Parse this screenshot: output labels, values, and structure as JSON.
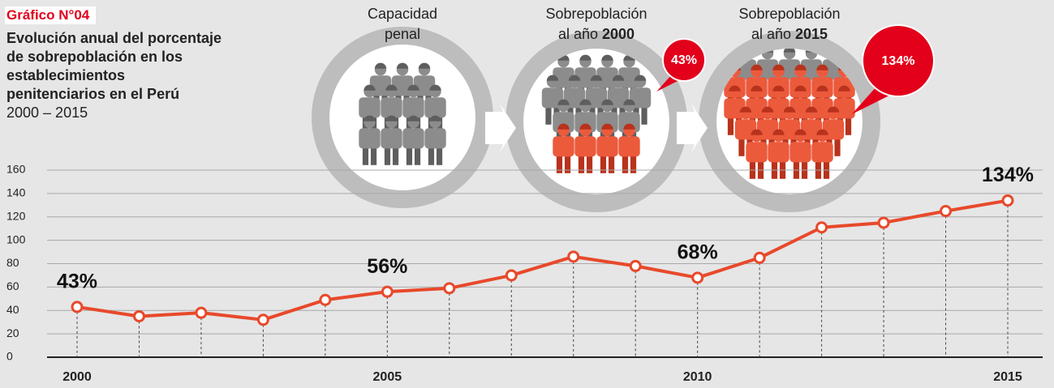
{
  "chart_data": {
    "type": "line",
    "figure_label": "Gráfico N°04",
    "title": [
      "Evolución anual del porcentaje",
      "de sobrepoblación en los",
      "establecimientos",
      "penitenciarios en el Perú"
    ],
    "subtitle": "2000 – 2015",
    "x": [
      2000,
      2001,
      2002,
      2003,
      2004,
      2005,
      2006,
      2007,
      2008,
      2009,
      2010,
      2011,
      2012,
      2013,
      2014,
      2015
    ],
    "values": [
      43,
      35,
      38,
      32,
      49,
      56,
      59,
      70,
      86,
      78,
      68,
      85,
      111,
      115,
      125,
      134
    ],
    "value_labels": [
      "43%",
      null,
      null,
      null,
      null,
      "56%",
      null,
      null,
      null,
      null,
      "68%",
      null,
      null,
      null,
      null,
      "134%"
    ],
    "color": "#e8492b",
    "xlim": [
      2000,
      2015
    ],
    "xticks": [
      2000,
      2005,
      2010,
      2015
    ],
    "ylim": [
      0,
      160
    ],
    "yticks": [
      0,
      20,
      40,
      60,
      80,
      100,
      120,
      140,
      160
    ],
    "grid": true
  },
  "illustration": {
    "panels": [
      {
        "line1": "Capacidad",
        "line2": "penal"
      },
      {
        "line1": "Sobrepoblación",
        "line2": "al año",
        "line2_bold": "2000",
        "badge": "43%"
      },
      {
        "line1": "Sobrepoblación",
        "line2": "al año",
        "line2_bold": "2015",
        "badge": "134%"
      }
    ]
  }
}
